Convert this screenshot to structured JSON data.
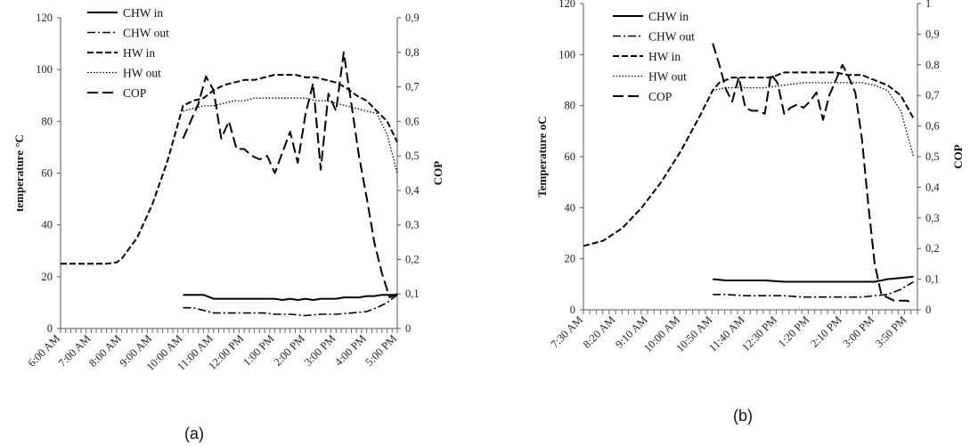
{
  "chart_data": [
    {
      "type": "line",
      "caption": "(a)",
      "ylabel": "temperature °C",
      "y2label": "COP",
      "ylim": [
        0,
        120
      ],
      "y2lim": [
        0,
        0.9
      ],
      "yticks": [
        "0",
        "20",
        "40",
        "60",
        "80",
        "100",
        "120"
      ],
      "y2ticks": [
        "0",
        "0,1",
        "0,2",
        "0,3",
        "0,4",
        "0,5",
        "0,6",
        "0,7",
        "0,8",
        "0,9"
      ],
      "x_labels": [
        "6:00 AM",
        "7:00 AM",
        "8:00 AM",
        "9:00 AM",
        "10:00 AM",
        "11:00 AM",
        "12:00 PM",
        "1:00 PM",
        "2:00 PM",
        "3:00 PM",
        "4:00 PM",
        "5:00 PM"
      ],
      "grid": false,
      "legend_position": "top-left",
      "series": [
        {
          "name": "CHW in",
          "style": "solid",
          "axis": "left",
          "x": [
            10,
            10.33,
            10.67,
            11,
            11.33,
            11.67,
            12,
            12.33,
            12.67,
            13,
            13.25,
            13.5,
            13.75,
            14,
            14.25,
            14.5,
            14.75,
            15,
            15.25,
            15.5,
            15.75,
            16,
            16.25,
            16.5,
            16.75,
            17
          ],
          "y": [
            13,
            13,
            13,
            11.5,
            11.5,
            11.5,
            11.5,
            11.5,
            11.5,
            11.5,
            11,
            11.5,
            11,
            11.5,
            11,
            11.5,
            11.5,
            11.5,
            12,
            12,
            12,
            12.5,
            12.5,
            13,
            13,
            13
          ]
        },
        {
          "name": "CHW out",
          "style": "dashdot",
          "axis": "left",
          "x": [
            10,
            10.33,
            10.67,
            11,
            11.33,
            11.67,
            12,
            12.33,
            12.67,
            13,
            13.5,
            14,
            14.5,
            15,
            15.5,
            16,
            16.33,
            16.67,
            17
          ],
          "y": [
            8,
            8,
            7,
            6,
            6,
            6,
            6,
            6,
            6,
            5.5,
            5.5,
            5,
            5.5,
            5.5,
            6,
            6.5,
            8,
            10,
            13
          ]
        },
        {
          "name": "HW in",
          "style": "dashed",
          "axis": "left",
          "x": [
            6,
            6.5,
            7,
            7.5,
            7.83,
            8,
            8.5,
            9,
            9.5,
            10,
            10.33,
            10.67,
            11,
            11.33,
            11.67,
            12,
            12.33,
            12.67,
            13,
            13.33,
            13.67,
            14,
            14.33,
            14.67,
            15,
            15.33,
            15.67,
            16,
            16.33,
            16.67,
            17
          ],
          "y": [
            25,
            25,
            25,
            25,
            25.5,
            27,
            35,
            48,
            65,
            86,
            88,
            89,
            92,
            94,
            95,
            96,
            96,
            97,
            98,
            98,
            98,
            97,
            97,
            96,
            95,
            93,
            90,
            88,
            84,
            80,
            72
          ]
        },
        {
          "name": "HW out",
          "style": "dotted",
          "axis": "left",
          "x": [
            10,
            10.33,
            10.67,
            11,
            11.33,
            11.67,
            12,
            12.33,
            12.67,
            13,
            13.33,
            13.67,
            14,
            14.33,
            14.67,
            15,
            15.33,
            15.67,
            16,
            16.33,
            16.67,
            17
          ],
          "y": [
            84,
            85,
            86,
            86,
            87,
            88,
            88,
            89,
            89,
            89,
            89,
            89,
            89,
            88,
            88,
            87,
            86,
            85,
            84,
            83,
            75,
            60
          ]
        },
        {
          "name": "COP",
          "style": "longdash",
          "axis": "right",
          "x": [
            10,
            10.25,
            10.5,
            10.75,
            11,
            11.25,
            11.5,
            11.75,
            12,
            12.25,
            12.5,
            12.75,
            13,
            13.25,
            13.5,
            13.75,
            14,
            14.25,
            14.5,
            14.75,
            15,
            15.25,
            15.5,
            15.75,
            16,
            16.25,
            16.5,
            16.75,
            17
          ],
          "y": [
            0.55,
            0.6,
            0.65,
            0.73,
            0.69,
            0.55,
            0.6,
            0.52,
            0.52,
            0.5,
            0.49,
            0.5,
            0.45,
            0.51,
            0.57,
            0.48,
            0.62,
            0.71,
            0.46,
            0.68,
            0.63,
            0.8,
            0.65,
            0.5,
            0.38,
            0.25,
            0.16,
            0.09,
            0.1
          ]
        }
      ]
    },
    {
      "type": "line",
      "caption": "(b)",
      "ylabel": "Temperature oC",
      "y2label": "COP",
      "ylim": [
        0,
        120
      ],
      "y2lim": [
        0,
        1
      ],
      "yticks": [
        "0",
        "20",
        "40",
        "60",
        "80",
        "100",
        "120"
      ],
      "y2ticks": [
        "0",
        "0,1",
        "0,2",
        "0,3",
        "0,4",
        "0,5",
        "0,6",
        "0,7",
        "0,8",
        "0,9",
        "1"
      ],
      "x_labels": [
        "7:30 AM",
        "8:20 AM",
        "9:10 AM",
        "10:00 AM",
        "10:50 AM",
        "11:40 AM",
        "12:30 PM",
        "1:20 PM",
        "2:10 PM",
        "3:00 PM",
        "3:50 PM"
      ],
      "grid": false,
      "legend_position": "top-left",
      "series": [
        {
          "name": "CHW in",
          "style": "solid",
          "axis": "left",
          "x": [
            10.83,
            11.17,
            11.67,
            12.17,
            12.67,
            13.17,
            13.67,
            14.17,
            14.67,
            15,
            15.33,
            15.67,
            16
          ],
          "y": [
            12,
            11.5,
            11.5,
            11.5,
            11,
            11,
            11,
            11,
            11,
            11,
            12,
            12.5,
            13
          ]
        },
        {
          "name": "CHW out",
          "style": "dashdot",
          "axis": "left",
          "x": [
            10.83,
            11.17,
            11.67,
            12.17,
            12.67,
            13.17,
            13.67,
            14.17,
            14.67,
            15,
            15.33,
            15.67,
            16
          ],
          "y": [
            6,
            6,
            5.5,
            5.5,
            5.5,
            5,
            5,
            5,
            5,
            5.5,
            6,
            8,
            11
          ]
        },
        {
          "name": "HW in",
          "style": "dashed",
          "axis": "left",
          "x": [
            7.5,
            8,
            8.5,
            9,
            9.5,
            10,
            10.5,
            10.83,
            11,
            11.33,
            11.67,
            12,
            12.33,
            12.67,
            13,
            13.33,
            13.67,
            14,
            14.33,
            14.67,
            15,
            15.33,
            15.67,
            16
          ],
          "y": [
            25,
            27,
            32,
            40,
            50,
            62,
            76,
            86,
            89,
            91,
            91,
            91,
            91,
            93,
            93,
            93,
            93,
            93,
            92,
            92,
            90,
            88,
            84,
            75
          ]
        },
        {
          "name": "HW out",
          "style": "dotted",
          "axis": "left",
          "x": [
            10.83,
            11.17,
            11.67,
            12.17,
            12.67,
            13.17,
            13.67,
            14.17,
            14.67,
            15,
            15.33,
            15.67,
            16
          ],
          "y": [
            86,
            87,
            87,
            87,
            88,
            89,
            89,
            89,
            89,
            88,
            86,
            78,
            60
          ]
        },
        {
          "name": "COP",
          "style": "longdash",
          "axis": "right",
          "x": [
            10.83,
            11,
            11.17,
            11.33,
            11.5,
            11.67,
            11.83,
            12,
            12.17,
            12.33,
            12.5,
            12.67,
            12.83,
            13,
            13.17,
            13.33,
            13.5,
            13.67,
            13.83,
            14,
            14.17,
            14.33,
            14.5,
            14.67,
            14.83,
            15,
            15.17,
            15.33,
            15.5,
            15.67,
            15.83,
            16
          ],
          "y": [
            0.87,
            0.8,
            0.72,
            0.68,
            0.76,
            0.66,
            0.65,
            0.65,
            0.64,
            0.77,
            0.74,
            0.64,
            0.66,
            0.67,
            0.66,
            0.68,
            0.71,
            0.62,
            0.7,
            0.75,
            0.8,
            0.76,
            0.71,
            0.56,
            0.35,
            0.15,
            0.05,
            0.04,
            0.03,
            0.03,
            0.03,
            0.02
          ]
        }
      ]
    }
  ]
}
